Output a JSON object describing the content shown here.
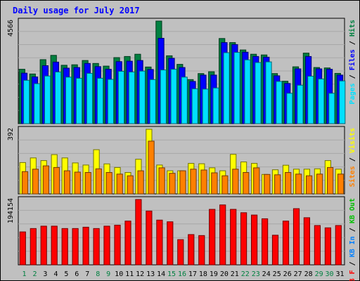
{
  "chart_data": {
    "type": "bar",
    "title": "Daily usage for July 2017",
    "days": [
      "1",
      "2",
      "3",
      "4",
      "5",
      "6",
      "7",
      "8",
      "9",
      "10",
      "11",
      "12",
      "13",
      "14",
      "15",
      "16",
      "17",
      "18",
      "19",
      "20",
      "21",
      "22",
      "23",
      "24",
      "25",
      "26",
      "27",
      "28",
      "29",
      "30",
      "31"
    ],
    "weekend_days": [
      "1",
      "2",
      "8",
      "9",
      "15",
      "16",
      "22",
      "23",
      "29",
      "30"
    ],
    "panels": [
      {
        "name": "hits-files-pages",
        "max_label": "4566",
        "ymax": 4566,
        "legend": [
          {
            "text": "Pages",
            "color": "#00e0ff"
          },
          {
            "text": "Files",
            "color": "#0000ff"
          },
          {
            "text": "Hits",
            "color": "#008040"
          }
        ],
        "series": [
          {
            "name": "Hits",
            "color": "#008040",
            "values": [
              2420,
              2210,
              2850,
              3040,
              2600,
              2620,
              2810,
              2680,
              2560,
              2940,
              2990,
              3090,
              2520,
              4566,
              3020,
              2640,
              1960,
              2230,
              2310,
              3790,
              3610,
              3280,
              3090,
              3060,
              2230,
              1890,
              2530,
              3140,
              2500,
              2480,
              2240
            ]
          },
          {
            "name": "Files",
            "color": "#0000ff",
            "values": [
              2250,
              2080,
              2580,
              2740,
              2470,
              2500,
              2680,
              2540,
              2420,
              2760,
              2780,
              2810,
              2410,
              3800,
              2910,
              2500,
              1880,
              2160,
              2160,
              3610,
              3520,
              3180,
              2990,
              2960,
              2130,
              1790,
              2440,
              2990,
              2440,
              2420,
              2160
            ]
          },
          {
            "name": "Pages",
            "color": "#00e0ff",
            "values": [
              1930,
              1780,
              2120,
              2300,
              2070,
              2020,
              2240,
              2020,
              1970,
              2330,
              2300,
              2340,
              1960,
              2390,
              2420,
              2070,
              1550,
              1540,
              1590,
              3160,
              3170,
              2840,
              2720,
              2750,
              1880,
              1350,
              1710,
              2110,
              1990,
              1350,
              1900
            ]
          }
        ]
      },
      {
        "name": "visits-sites",
        "max_label": "392",
        "ymax": 392,
        "legend": [
          {
            "text": "Sites",
            "color": "#ff8000"
          },
          {
            "text": "Visits",
            "color": "#ffff00"
          }
        ],
        "series": [
          {
            "name": "Visits",
            "color": "#ffff00",
            "values": [
              190,
              218,
              202,
              238,
              218,
              188,
              175,
              268,
              182,
              160,
              130,
              210,
              392,
              175,
              140,
              140,
              185,
              183,
              158,
              140,
              240,
              194,
              185,
              118,
              146,
              174,
              150,
              150,
              152,
              202,
              150
            ]
          },
          {
            "name": "Sites",
            "color": "#ff8000",
            "values": [
              135,
              150,
              170,
              160,
              140,
              132,
              130,
              152,
              130,
              120,
              110,
              140,
              320,
              158,
              125,
              140,
              150,
              145,
              128,
              110,
              150,
              130,
              158,
              118,
              116,
              130,
              120,
              110,
              120,
              160,
              120
            ]
          }
        ]
      },
      {
        "name": "kbytes",
        "max_label": "194154",
        "ymax": 194154,
        "legend": [
          {
            "text": "KB F",
            "color": "#ff0000"
          },
          {
            "text": "KB In",
            "color": "#0080ff"
          },
          {
            "text": "KB Out",
            "color": "#00c000"
          }
        ],
        "series": [
          {
            "name": "KB F",
            "color": "#ff0000",
            "values": [
              98000,
              108000,
              115000,
              115000,
              108000,
              108000,
              112000,
              108000,
              115000,
              118000,
              130000,
              194154,
              160000,
              133000,
              128000,
              75000,
              90000,
              87000,
              165000,
              178000,
              165000,
              155000,
              148000,
              137000,
              88000,
              130000,
              167000,
              140000,
              117000,
              110000,
              117000
            ]
          }
        ]
      }
    ]
  }
}
